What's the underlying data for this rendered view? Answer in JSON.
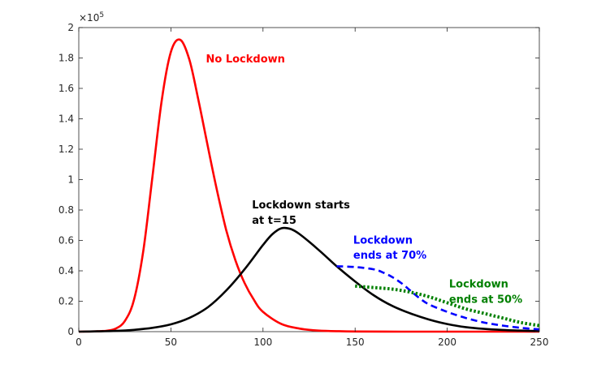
{
  "chart_data": {
    "type": "line",
    "title": "",
    "xlabel": "",
    "ylabel": "",
    "xlim": [
      0,
      250
    ],
    "ylim": [
      0,
      2
    ],
    "y_multiplier": {
      "base": "×10",
      "exp": "5"
    },
    "grid": false,
    "xticks": [
      0,
      50,
      100,
      150,
      200,
      250
    ],
    "yticks": [
      0,
      0.2,
      0.4,
      0.6,
      0.8,
      1,
      1.2,
      1.4,
      1.6,
      1.8,
      2
    ],
    "series": [
      {
        "color": "#ff0000",
        "style": "solid",
        "x": [
          0,
          10,
          15,
          20,
          25,
          30,
          35,
          40,
          45,
          50,
          55,
          60,
          65,
          70,
          75,
          80,
          85,
          90,
          95,
          100,
          110,
          120,
          130,
          140,
          150,
          175,
          200,
          250
        ],
        "y": [
          0,
          0.002,
          0.006,
          0.02,
          0.07,
          0.21,
          0.53,
          1.02,
          1.52,
          1.84,
          1.92,
          1.79,
          1.52,
          1.22,
          0.93,
          0.67,
          0.47,
          0.32,
          0.21,
          0.13,
          0.05,
          0.02,
          0.007,
          0.003,
          0.001,
          0,
          0,
          0
        ]
      },
      {
        "color": "#000000",
        "style": "solid",
        "x": [
          0,
          10,
          20,
          30,
          40,
          50,
          60,
          70,
          80,
          90,
          100,
          105,
          110,
          115,
          120,
          130,
          140,
          150,
          160,
          170,
          180,
          190,
          200,
          210,
          220,
          230,
          240,
          250
        ],
        "y": [
          0,
          0.002,
          0.005,
          0.012,
          0.025,
          0.048,
          0.09,
          0.16,
          0.27,
          0.41,
          0.57,
          0.64,
          0.68,
          0.675,
          0.64,
          0.54,
          0.43,
          0.33,
          0.24,
          0.17,
          0.12,
          0.08,
          0.05,
          0.03,
          0.018,
          0.011,
          0.007,
          0.004
        ]
      },
      {
        "color": "#0000ff",
        "style": "dashed",
        "x": [
          140,
          150,
          160,
          165,
          170,
          175,
          180,
          185,
          190,
          200,
          210,
          220,
          230,
          240,
          250
        ],
        "y": [
          0.43,
          0.425,
          0.41,
          0.39,
          0.36,
          0.32,
          0.27,
          0.22,
          0.18,
          0.13,
          0.09,
          0.06,
          0.04,
          0.025,
          0.015
        ]
      },
      {
        "color": "#008000",
        "style": "dotted",
        "x": [
          150,
          160,
          170,
          180,
          190,
          200,
          210,
          220,
          230,
          240,
          250
        ],
        "y": [
          0.3,
          0.29,
          0.28,
          0.26,
          0.23,
          0.19,
          0.15,
          0.12,
          0.09,
          0.06,
          0.04
        ]
      }
    ],
    "annotations": [
      {
        "text": "No Lockdown",
        "color": "#ff0000",
        "x": 69,
        "y": 1.77
      },
      {
        "text": "Lockdown starts",
        "color": "#000000",
        "x": 94,
        "y": 0.81
      },
      {
        "text": "at t=15",
        "color": "#000000",
        "x": 94,
        "y": 0.71
      },
      {
        "text": "Lockdown",
        "color": "#0000ff",
        "x": 149,
        "y": 0.58
      },
      {
        "text": "ends at 70%",
        "color": "#0000ff",
        "x": 149,
        "y": 0.48
      },
      {
        "text": "Lockdown",
        "color": "#008000",
        "x": 201,
        "y": 0.29
      },
      {
        "text": "ends at 50%",
        "color": "#008000",
        "x": 201,
        "y": 0.19
      }
    ]
  }
}
